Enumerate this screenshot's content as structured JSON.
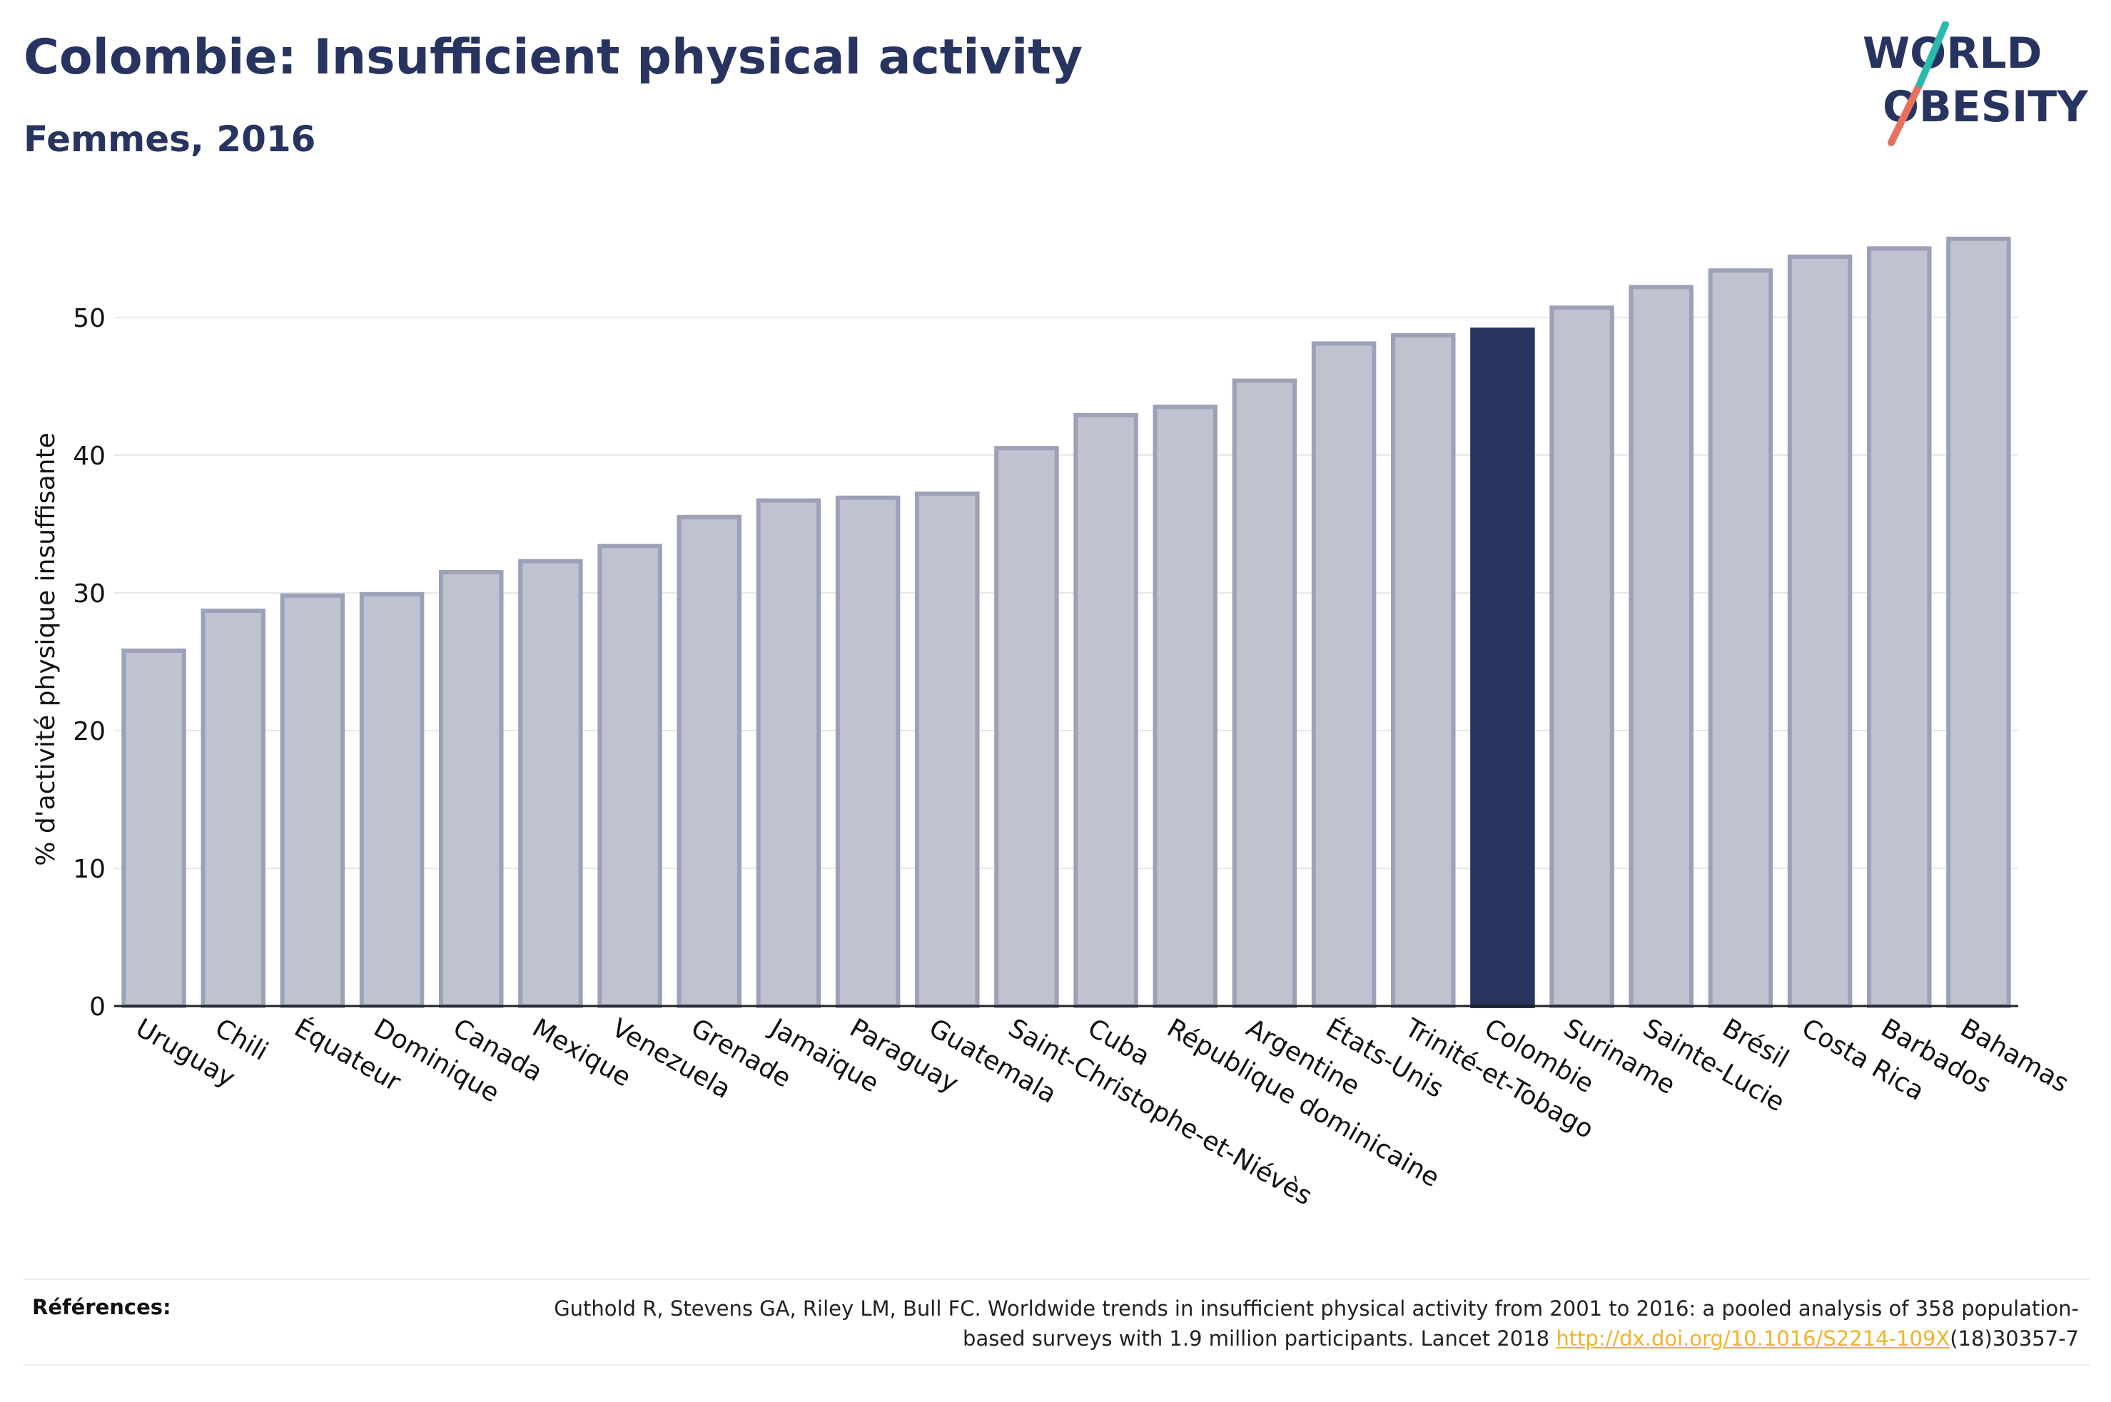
{
  "header": {
    "title": "Colombie: Insufficient physical activity",
    "subtitle": "Femmes, 2016"
  },
  "logo": {
    "line1": "WORLD",
    "line2": "OBESITY",
    "colors": {
      "text": "#283460",
      "slash_teal": "#2bbbad",
      "slash_coral": "#e8705f"
    }
  },
  "chart_data": {
    "type": "bar",
    "title": "Colombie: Insufficient physical activity",
    "subtitle": "Femmes, 2016",
    "xlabel": "",
    "ylabel": "% d'activité physique insuffisante",
    "ylim": [
      0,
      57.5
    ],
    "yticks": [
      0,
      10,
      20,
      30,
      40,
      50
    ],
    "grid": true,
    "categories": [
      "Uruguay",
      "Chili",
      "Équateur",
      "Dominique",
      "Canada",
      "Mexique",
      "Venezuela",
      "Grenade",
      "Jamaïque",
      "Paraguay",
      "Guatemala",
      "Saint-Christophe-et-Niévès",
      "Cuba",
      "République dominicaine",
      "Argentine",
      "États-Unis",
      "Trinité-et-Tobago",
      "Colombie",
      "Suriname",
      "Sainte-Lucie",
      "Brésil",
      "Costa Rica",
      "Barbados",
      "Bahamas"
    ],
    "values": [
      25.8,
      28.7,
      29.8,
      29.9,
      31.5,
      32.3,
      33.4,
      35.5,
      36.7,
      36.9,
      37.2,
      40.5,
      42.9,
      43.5,
      45.4,
      48.1,
      48.7,
      49.1,
      50.7,
      52.2,
      53.4,
      54.4,
      55.0,
      55.7
    ],
    "highlight": "Colombie",
    "colors": {
      "bar": "#bfc2cf",
      "bar_border": "#9ca1b8",
      "highlight": "#283460",
      "grid": "#e6e6e6",
      "axis": "#222222"
    }
  },
  "footer": {
    "references_label": "Références:",
    "reference_text": "Guthold R, Stevens GA, Riley LM, Bull FC. Worldwide trends in insufficient physical activity from 2001 to 2016: a pooled analysis of 358 population-based surveys with 1.9 million participants. Lancet 2018 ",
    "reference_link": "http://dx.doi.org/10.1016/S2214-109X",
    "reference_suffix": "(18)30357-7"
  }
}
